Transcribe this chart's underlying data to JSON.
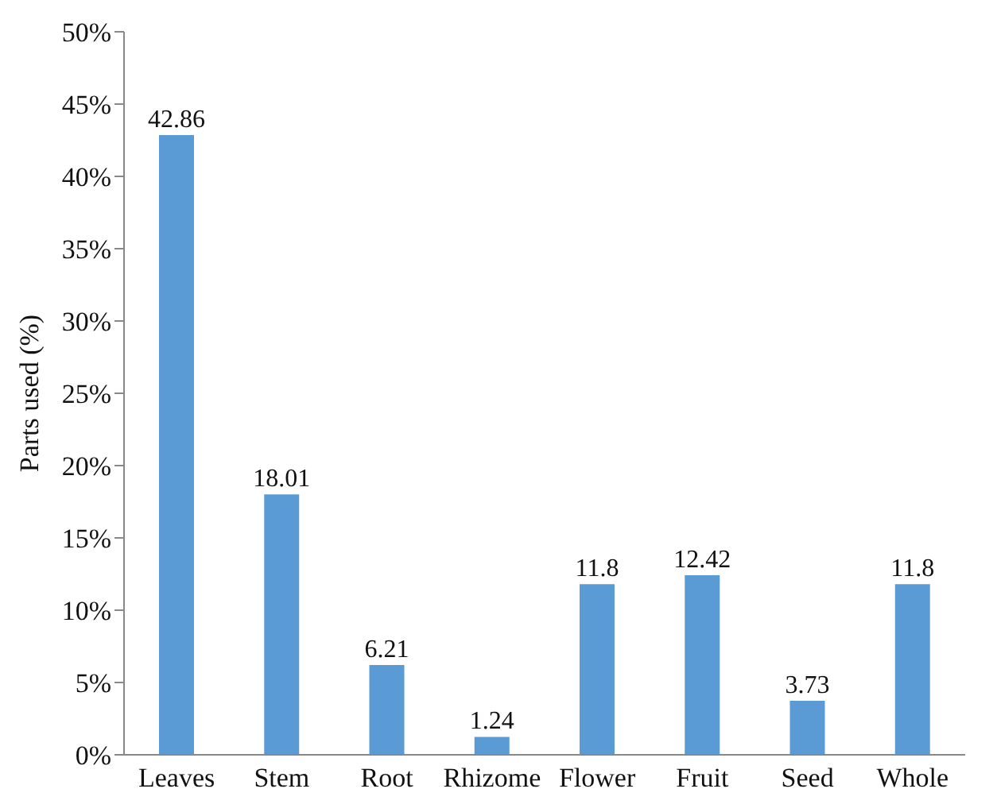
{
  "chart_data": {
    "type": "bar",
    "ylabel": "Parts used (%)",
    "categories": [
      "Leaves",
      "Stem",
      "Root",
      "Rhizome",
      "Flower",
      "Fruit",
      "Seed",
      "Whole"
    ],
    "values": [
      42.86,
      18.01,
      6.21,
      1.24,
      11.8,
      12.42,
      3.73,
      11.8
    ],
    "color": "#5b9bd5",
    "ylim": [
      0,
      50
    ],
    "yticks": [
      {
        "value": 0,
        "label": "0%"
      },
      {
        "value": 5,
        "label": "5%"
      },
      {
        "value": 10,
        "label": "10%"
      },
      {
        "value": 15,
        "label": "15%"
      },
      {
        "value": 20,
        "label": "20%"
      },
      {
        "value": 25,
        "label": "25%"
      },
      {
        "value": 30,
        "label": "30%"
      },
      {
        "value": 35,
        "label": "35%"
      },
      {
        "value": 40,
        "label": "40%"
      },
      {
        "value": 45,
        "label": "45%"
      },
      {
        "value": 50,
        "label": "50%"
      }
    ],
    "data_labels": true,
    "grid": false
  }
}
